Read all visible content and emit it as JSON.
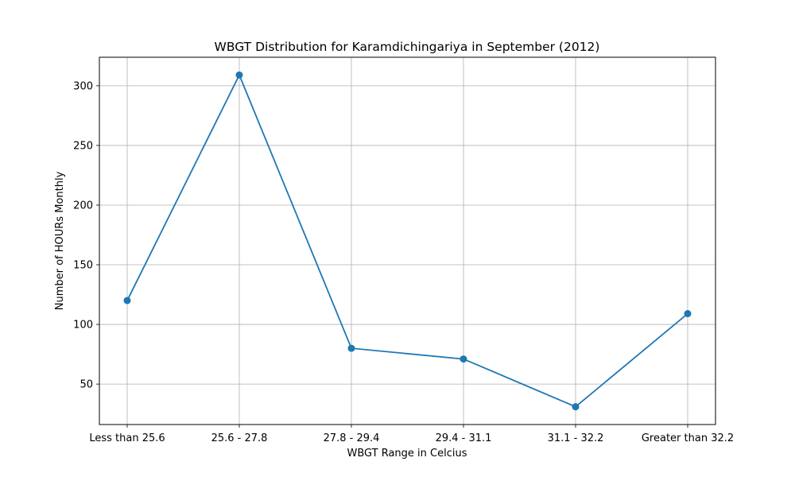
{
  "chart_data": {
    "type": "line",
    "title": "WBGT Distribution for Karamdichingariya in September (2012)",
    "xlabel": "WBGT Range in Celcius",
    "ylabel": "Number of HOURs Monthly",
    "categories": [
      "Less than 25.6",
      "25.6 - 27.8",
      "27.8 - 29.4",
      "29.4 - 31.1",
      "31.1 - 32.2",
      "Greater than 32.2"
    ],
    "series": [
      {
        "values": [
          120,
          309,
          80,
          71,
          31,
          109
        ]
      }
    ],
    "yticks": [
      50,
      100,
      150,
      200,
      250,
      300
    ],
    "ylim": [
      16.1,
      323.9
    ],
    "grid": true,
    "line_color": "#1f77b4"
  }
}
